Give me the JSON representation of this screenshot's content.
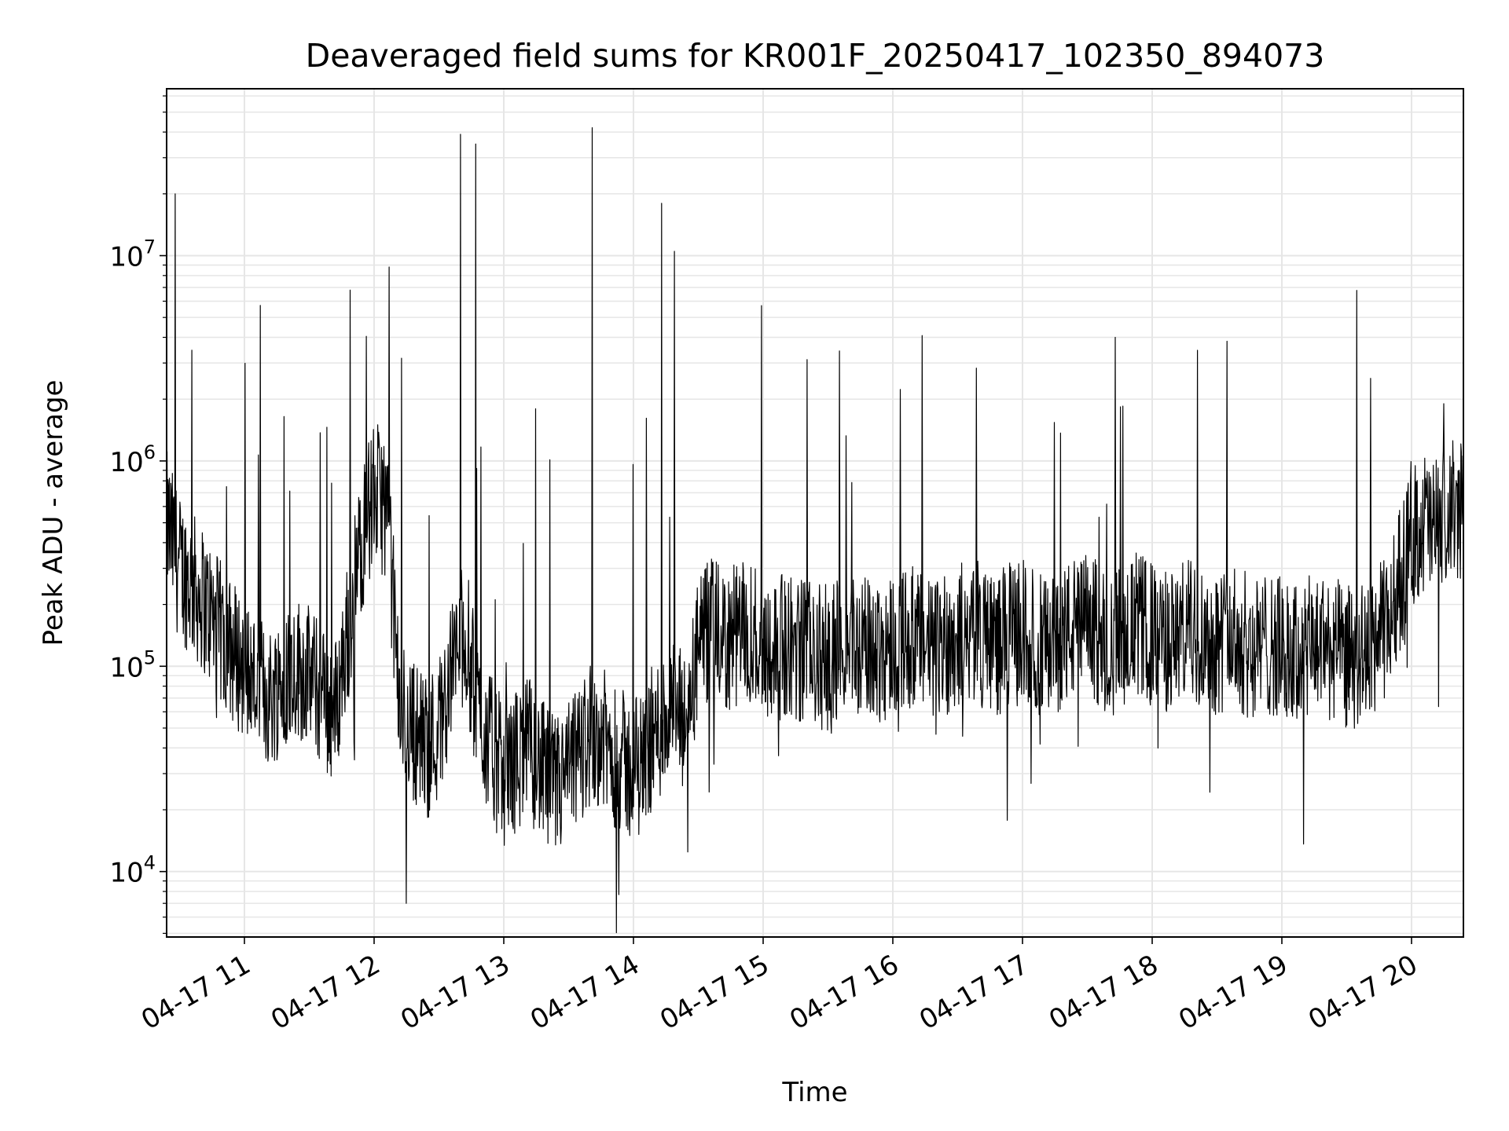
{
  "chart_data": {
    "type": "line",
    "title": "Deaveraged field sums for KR001F_20250417_102350_894073",
    "xlabel": "Time",
    "ylabel": "Peak ADU - average",
    "yscale": "log",
    "ylim": [
      4800,
      65000000
    ],
    "xlim": [
      "2025-04-17 10:24",
      "2025-04-17 20:24"
    ],
    "grid": true,
    "line_color": "#000000",
    "grid_color": "#e6e6e6",
    "x_ticks": [
      "04-17 11",
      "04-17 12",
      "04-17 13",
      "04-17 14",
      "04-17 15",
      "04-17 16",
      "04-17 17",
      "04-17 18",
      "04-17 19",
      "04-17 20"
    ],
    "y_ticks": [
      {
        "base": "10",
        "exp": "4",
        "value": 10000
      },
      {
        "base": "10",
        "exp": "5",
        "value": 100000
      },
      {
        "base": "10",
        "exp": "6",
        "value": 1000000
      },
      {
        "base": "10",
        "exp": "7",
        "value": 10000000
      }
    ],
    "series": [
      {
        "x": [
          "2025-04-17 10:24",
          "2025-04-17 10:30",
          "2025-04-17 10:36",
          "2025-04-17 10:42",
          "2025-04-17 10:48",
          "2025-04-17 10:54",
          "2025-04-17 11:00",
          "2025-04-17 11:06",
          "2025-04-17 11:12",
          "2025-04-17 11:18",
          "2025-04-17 11:24",
          "2025-04-17 11:30",
          "2025-04-17 11:36",
          "2025-04-17 11:42",
          "2025-04-17 11:48",
          "2025-04-17 11:54",
          "2025-04-17 12:00",
          "2025-04-17 12:06",
          "2025-04-17 12:12",
          "2025-04-17 12:18",
          "2025-04-17 12:24",
          "2025-04-17 12:30",
          "2025-04-17 12:36",
          "2025-04-17 12:42",
          "2025-04-17 12:48",
          "2025-04-17 12:54",
          "2025-04-17 13:00",
          "2025-04-17 13:06",
          "2025-04-17 13:12",
          "2025-04-17 13:18",
          "2025-04-17 13:24",
          "2025-04-17 13:30",
          "2025-04-17 13:36",
          "2025-04-17 13:42",
          "2025-04-17 13:48",
          "2025-04-17 13:54",
          "2025-04-17 14:00",
          "2025-04-17 14:06",
          "2025-04-17 14:12",
          "2025-04-17 14:18",
          "2025-04-17 14:24",
          "2025-04-17 14:30",
          "2025-04-17 14:36",
          "2025-04-17 14:42",
          "2025-04-17 14:48",
          "2025-04-17 14:54",
          "2025-04-17 15:00",
          "2025-04-17 15:06",
          "2025-04-17 15:12",
          "2025-04-17 15:18",
          "2025-04-17 15:24",
          "2025-04-17 15:30",
          "2025-04-17 15:36",
          "2025-04-17 15:42",
          "2025-04-17 15:48",
          "2025-04-17 15:54",
          "2025-04-17 16:00",
          "2025-04-17 16:06",
          "2025-04-17 16:12",
          "2025-04-17 16:18",
          "2025-04-17 16:24",
          "2025-04-17 16:30",
          "2025-04-17 16:36",
          "2025-04-17 16:42",
          "2025-04-17 16:48",
          "2025-04-17 16:54",
          "2025-04-17 17:00",
          "2025-04-17 17:06",
          "2025-04-17 17:12",
          "2025-04-17 17:18",
          "2025-04-17 17:24",
          "2025-04-17 17:30",
          "2025-04-17 17:36",
          "2025-04-17 17:42",
          "2025-04-17 17:48",
          "2025-04-17 17:54",
          "2025-04-17 18:00",
          "2025-04-17 18:06",
          "2025-04-17 18:12",
          "2025-04-17 18:18",
          "2025-04-17 18:24",
          "2025-04-17 18:30",
          "2025-04-17 18:36",
          "2025-04-17 18:42",
          "2025-04-17 18:48",
          "2025-04-17 18:54",
          "2025-04-17 19:00",
          "2025-04-17 19:06",
          "2025-04-17 19:12",
          "2025-04-17 19:18",
          "2025-04-17 19:24",
          "2025-04-17 19:30",
          "2025-04-17 19:36",
          "2025-04-17 19:42",
          "2025-04-17 19:48",
          "2025-04-17 19:54",
          "2025-04-17 20:00",
          "2025-04-17 20:06",
          "2025-04-17 20:12",
          "2025-04-17 20:18",
          "2025-04-17 20:24"
        ],
        "values": [
          500000,
          300000,
          250000,
          200000,
          150000,
          120000,
          100000,
          80000,
          70000,
          90000,
          100000,
          90000,
          70000,
          60000,
          150000,
          400000,
          700000,
          600000,
          60000,
          50000,
          40000,
          50000,
          100000,
          150000,
          60000,
          40000,
          30000,
          35000,
          40000,
          30000,
          25000,
          30000,
          40000,
          50000,
          40000,
          35000,
          30000,
          40000,
          50000,
          60000,
          50000,
          120000,
          150000,
          130000,
          140000,
          150000,
          130000,
          120000,
          130000,
          120000,
          110000,
          110000,
          120000,
          130000,
          120000,
          120000,
          130000,
          140000,
          130000,
          120000,
          130000,
          140000,
          150000,
          140000,
          130000,
          140000,
          150000,
          130000,
          120000,
          140000,
          150000,
          160000,
          140000,
          130000,
          150000,
          160000,
          140000,
          130000,
          140000,
          150000,
          140000,
          130000,
          140000,
          130000,
          120000,
          130000,
          120000,
          110000,
          120000,
          130000,
          120000,
          110000,
          110000,
          130000,
          150000,
          250000,
          450000,
          500000,
          450000,
          550000,
          600000
        ]
      }
    ],
    "spikes": [
      {
        "x": "2025-04-17 10:28",
        "value": 20000000
      },
      {
        "x": "2025-04-17 11:49",
        "value": 6800000
      },
      {
        "x": "2025-04-17 12:07",
        "value": 8800000
      },
      {
        "x": "2025-04-17 12:40",
        "value": 39000000
      },
      {
        "x": "2025-04-17 12:47",
        "value": 35000000
      },
      {
        "x": "2025-04-17 13:41",
        "value": 42000000
      },
      {
        "x": "2025-04-17 14:13",
        "value": 18000000
      },
      {
        "x": "2025-04-17 14:19",
        "value": 10500000
      },
      {
        "x": "2025-04-17 17:43",
        "value": 4000000
      },
      {
        "x": "2025-04-17 20:15",
        "value": 1900000
      }
    ]
  }
}
